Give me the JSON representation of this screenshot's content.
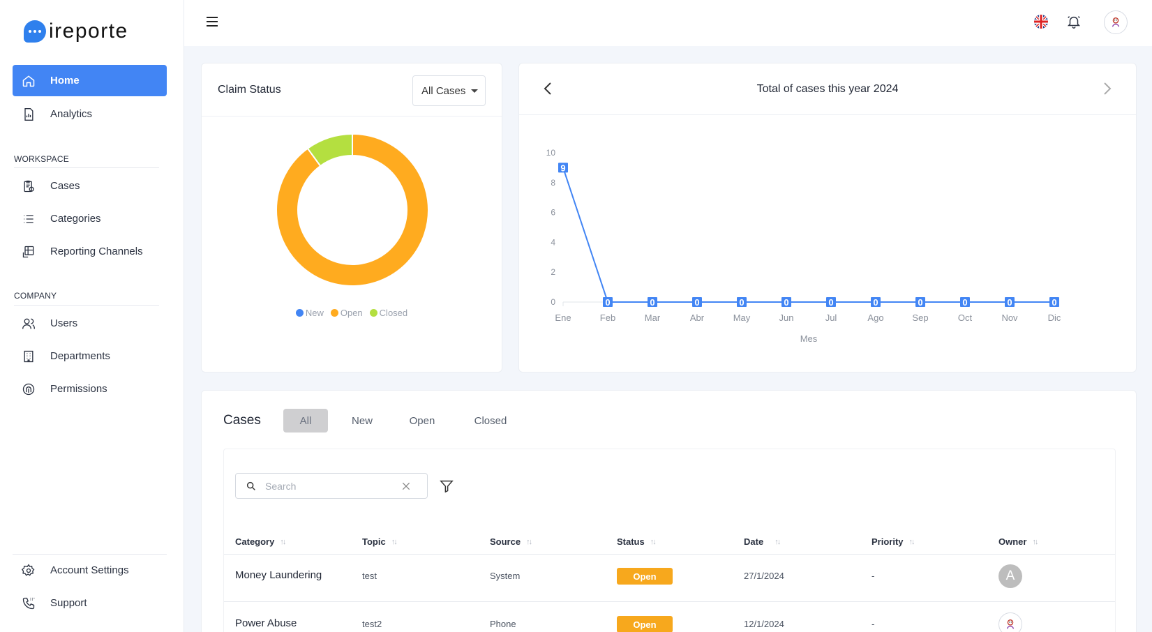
{
  "app": {
    "logo_text": "ireporte"
  },
  "sidebar": {
    "main": [
      {
        "label": "Home",
        "icon": "home-icon"
      },
      {
        "label": "Analytics",
        "icon": "analytics-icon"
      }
    ],
    "workspace_label": "WORKSPACE",
    "workspace": [
      {
        "label": "Cases",
        "icon": "clipboard-icon"
      },
      {
        "label": "Categories",
        "icon": "list-icon"
      },
      {
        "label": "Reporting Channels",
        "icon": "channels-icon"
      }
    ],
    "company_label": "COMPANY",
    "company": [
      {
        "label": "Users",
        "icon": "users-icon"
      },
      {
        "label": "Departments",
        "icon": "building-icon"
      },
      {
        "label": "Permissions",
        "icon": "fingerprint-icon"
      }
    ],
    "bottom": [
      {
        "label": "Account Settings",
        "icon": "gear-icon"
      },
      {
        "label": "Support",
        "icon": "phone-icon"
      }
    ]
  },
  "claim": {
    "title": "Claim Status",
    "filter_value": "All Cases",
    "legend": [
      "New",
      "Open",
      "Closed"
    ]
  },
  "trend": {
    "title": "Total of cases this year 2024"
  },
  "chart_data": [
    {
      "type": "pie",
      "title": "Claim Status",
      "categories": [
        "New",
        "Open",
        "Closed"
      ],
      "values": [
        0,
        9,
        1
      ],
      "colors": [
        "#4285f4",
        "#ffab1f",
        "#b4df40"
      ]
    },
    {
      "type": "line",
      "title": "Total of cases this year 2024",
      "xlabel": "Mes",
      "ylabel": "",
      "categories": [
        "Ene",
        "Feb",
        "Mar",
        "Abr",
        "May",
        "Jun",
        "Jul",
        "Ago",
        "Sep",
        "Oct",
        "Nov",
        "Dic"
      ],
      "values": [
        9,
        0,
        0,
        0,
        0,
        0,
        0,
        0,
        0,
        0,
        0,
        0
      ],
      "ylim": [
        0,
        10
      ],
      "yticks": [
        0,
        2,
        4,
        6,
        8,
        10
      ],
      "color": "#4285f4"
    }
  ],
  "cases": {
    "title": "Cases",
    "tabs": [
      "All",
      "New",
      "Open",
      "Closed"
    ],
    "search_placeholder": "Search",
    "columns": [
      "Category",
      "Topic",
      "Source",
      "Status",
      "Date",
      "Priority",
      "Owner"
    ],
    "rows": [
      {
        "category": "Money Laundering",
        "topic": "test",
        "source": "System",
        "status": "Open",
        "date": "27/1/2024",
        "priority": "-",
        "owner": "A"
      },
      {
        "category": "Power Abuse",
        "topic": "test2",
        "source": "Phone",
        "status": "Open",
        "date": "12/1/2024",
        "priority": "-",
        "owner": ""
      }
    ]
  },
  "colors": {
    "accent": "#4285f4",
    "open": "#f7a81d",
    "new": "#4285f4",
    "closed": "#b4df40"
  }
}
